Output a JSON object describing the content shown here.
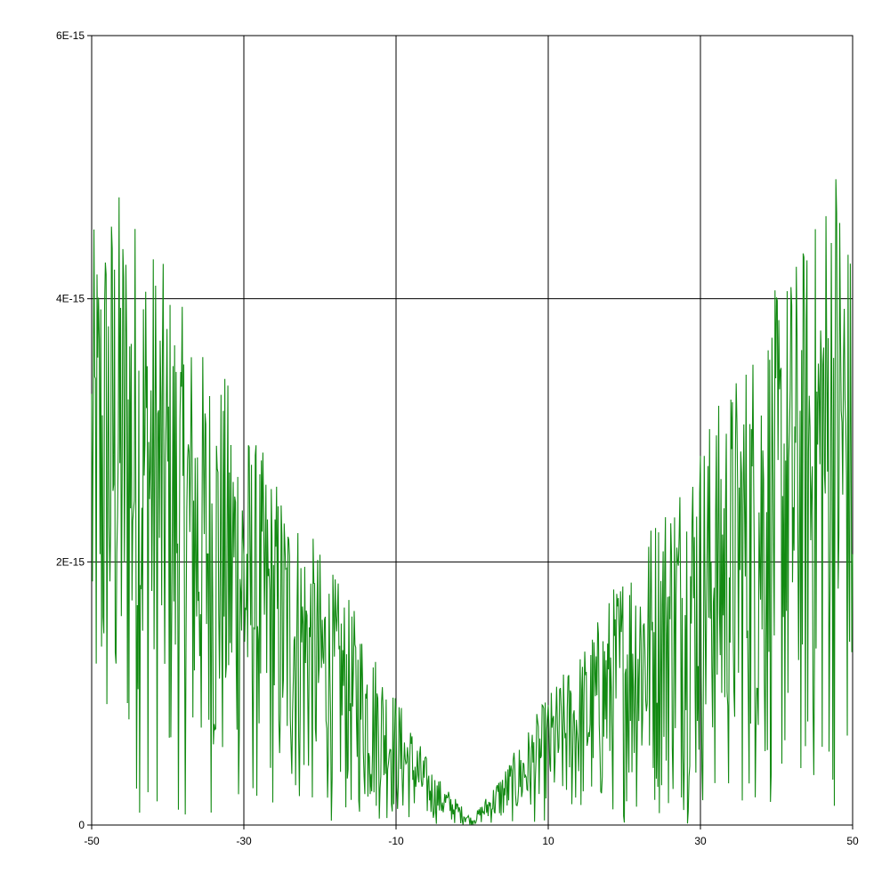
{
  "chart_data": {
    "type": "line",
    "title": "",
    "xlabel": "",
    "ylabel": "",
    "xlim": [
      -50,
      50
    ],
    "ylim": [
      0,
      6e-15
    ],
    "grid": true,
    "x_ticks": [
      -50,
      -30,
      -10,
      10,
      30,
      50
    ],
    "x_tick_labels": [
      "-50",
      "-30",
      "-10",
      "10",
      "30",
      "50"
    ],
    "y_ticks": [
      0,
      2e-15,
      4e-15,
      6e-15
    ],
    "y_tick_labels": [
      "0",
      "2E-15",
      "4E-15",
      "6E-15"
    ],
    "series": [
      {
        "color": "#138a13",
        "x_start": -50,
        "x_step": 0.1,
        "envelope": [
          [
            -50,
            4.5e-15
          ],
          [
            -47,
            4.9e-15
          ],
          [
            -45,
            4.8e-15
          ],
          [
            -43,
            4.6e-15
          ],
          [
            -40,
            4.2e-15
          ],
          [
            -37,
            3.8e-15
          ],
          [
            -35,
            3.6e-15
          ],
          [
            -32,
            3.4e-15
          ],
          [
            -30,
            3.1e-15
          ],
          [
            -25,
            2.6e-15
          ],
          [
            -20,
            2.1e-15
          ],
          [
            -15,
            1.6e-15
          ],
          [
            -10,
            1e-15
          ],
          [
            -5,
            4e-16
          ],
          [
            0,
            5e-17
          ],
          [
            5,
            5e-16
          ],
          [
            10,
            1e-15
          ],
          [
            15,
            1.4e-15
          ],
          [
            20,
            2e-15
          ],
          [
            25,
            2.5e-15
          ],
          [
            30,
            3e-15
          ],
          [
            35,
            3.5e-15
          ],
          [
            40,
            4.1e-15
          ],
          [
            45,
            4.6e-15
          ],
          [
            48,
            5.3e-15
          ],
          [
            50,
            4.3e-15
          ]
        ],
        "samples": 1001
      }
    ]
  }
}
